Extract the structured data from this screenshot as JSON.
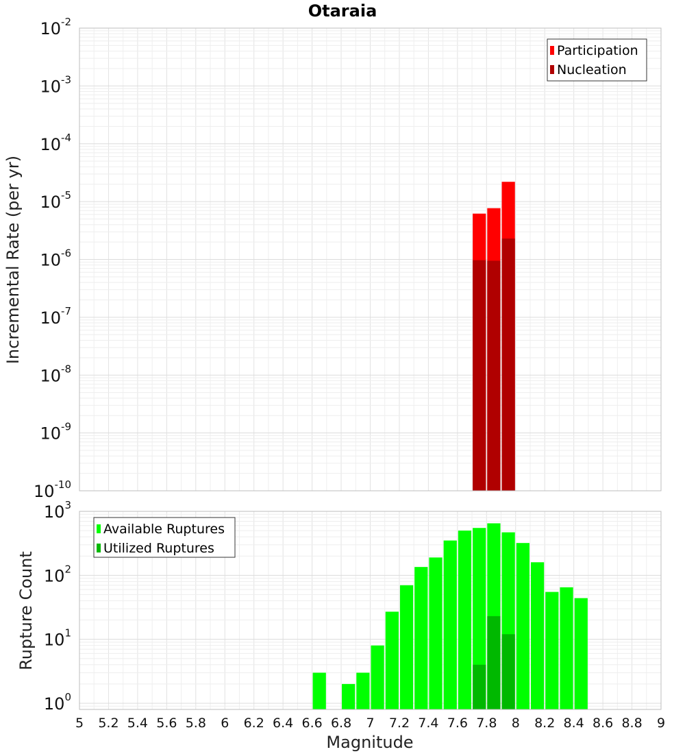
{
  "chart_data": [
    {
      "type": "bar",
      "title": "Otaraia",
      "xlabel": "Magnitude",
      "ylabel": "Incremental Rate (per yr)",
      "yscale": "log",
      "ylim": [
        1e-10,
        0.01
      ],
      "xlim": [
        5,
        9
      ],
      "yticks": [
        {
          "base": "10",
          "exp": "-10"
        },
        {
          "base": "10",
          "exp": "-9"
        },
        {
          "base": "10",
          "exp": "-8"
        },
        {
          "base": "10",
          "exp": "-7"
        },
        {
          "base": "10",
          "exp": "-6"
        },
        {
          "base": "10",
          "exp": "-5"
        },
        {
          "base": "10",
          "exp": "-4"
        },
        {
          "base": "10",
          "exp": "-3"
        },
        {
          "base": "10",
          "exp": "-2"
        }
      ],
      "grid": true,
      "legend_position": "top-right",
      "bar_width": 0.1,
      "series": [
        {
          "name": "Participation",
          "color": "#ff0000",
          "x": [
            7.75,
            7.85,
            7.95
          ],
          "values": [
            6.2e-06,
            7.7e-06,
            2.2e-05
          ]
        },
        {
          "name": "Nucleation",
          "color": "#b00000",
          "x": [
            7.75,
            7.85,
            7.95
          ],
          "values": [
            9.7e-07,
            9.5e-07,
            2.3e-06
          ]
        }
      ]
    },
    {
      "type": "bar",
      "xlabel": "Magnitude",
      "ylabel": "Rupture Count",
      "yscale": "log",
      "ylim": [
        0.8,
        1000
      ],
      "xlim": [
        5,
        9
      ],
      "yticks": [
        {
          "base": "10",
          "exp": "0"
        },
        {
          "base": "10",
          "exp": "1"
        },
        {
          "base": "10",
          "exp": "2"
        },
        {
          "base": "10",
          "exp": "3"
        }
      ],
      "xticks": [
        "5",
        "5.2",
        "5.4",
        "5.6",
        "5.8",
        "6",
        "6.2",
        "6.4",
        "6.6",
        "6.8",
        "7",
        "7.2",
        "7.4",
        "7.6",
        "7.8",
        "8",
        "8.2",
        "8.4",
        "8.6",
        "8.8",
        "9"
      ],
      "grid": true,
      "legend_position": "top-left",
      "bar_width": 0.1,
      "series": [
        {
          "name": "Available Ruptures",
          "color": "#00ff00",
          "x": [
            6.65,
            6.85,
            6.95,
            7.05,
            7.15,
            7.25,
            7.35,
            7.45,
            7.55,
            7.65,
            7.75,
            7.85,
            7.95,
            8.05,
            8.15,
            8.25,
            8.35,
            8.45
          ],
          "values": [
            3,
            2,
            3,
            8,
            27,
            70,
            135,
            190,
            350,
            500,
            550,
            650,
            470,
            320,
            160,
            55,
            65,
            44
          ]
        },
        {
          "name": "Utilized Ruptures",
          "color": "#00b800",
          "x": [
            7.75,
            7.85,
            7.95
          ],
          "values": [
            4,
            23,
            12
          ]
        }
      ]
    }
  ]
}
